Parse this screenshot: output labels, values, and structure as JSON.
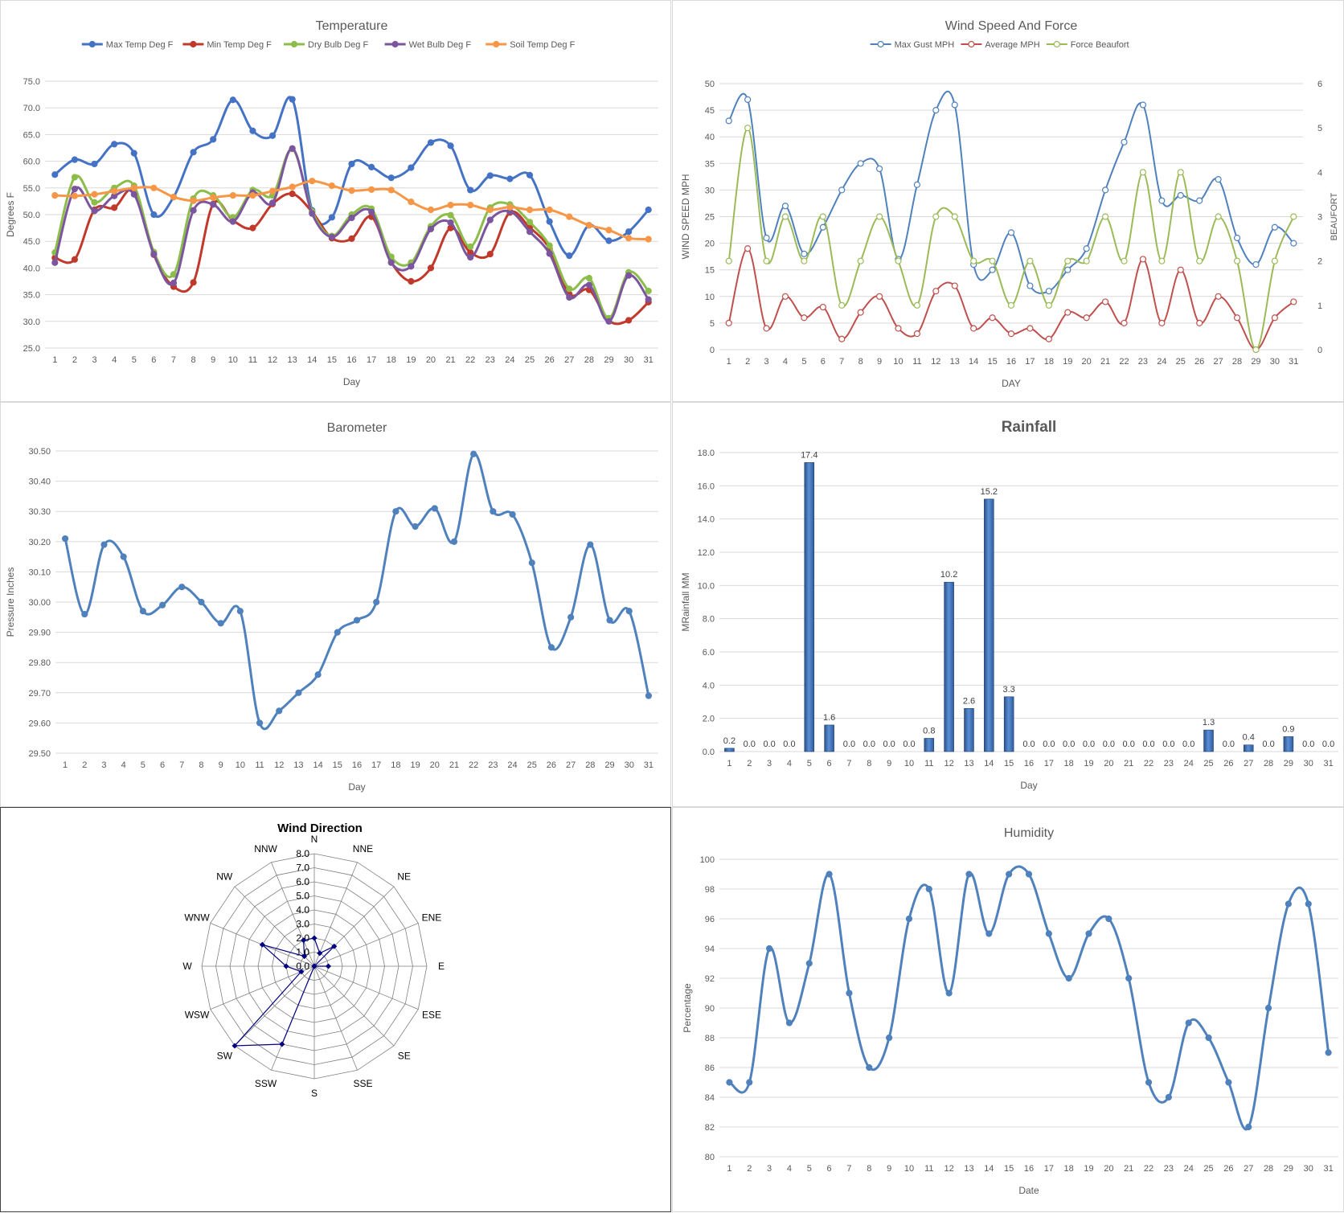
{
  "chart_data": [
    {
      "id": "temperature",
      "type": "line",
      "title": "Temperature",
      "xlabel": "Day",
      "ylabel": "Degrees F",
      "ylim": [
        25,
        75
      ],
      "yticks": [
        "25.0",
        "30.0",
        "35.0",
        "40.0",
        "45.0",
        "50.0",
        "55.0",
        "60.0",
        "65.0",
        "70.0",
        "75.0"
      ],
      "legend": "top",
      "grid": true,
      "categories": [
        1,
        2,
        3,
        4,
        5,
        6,
        7,
        8,
        9,
        10,
        11,
        12,
        13,
        14,
        15,
        16,
        17,
        18,
        19,
        20,
        21,
        22,
        23,
        24,
        25,
        26,
        27,
        28,
        29,
        30,
        31
      ],
      "series": [
        {
          "name": "Max Temp Deg F",
          "color": "#4472c4",
          "values": [
            57.5,
            60.3,
            59.5,
            63.2,
            61.5,
            50.0,
            53.3,
            61.7,
            64.1,
            71.5,
            65.7,
            64.8,
            71.6,
            50.8,
            49.5,
            59.5,
            58.9,
            56.9,
            58.8,
            63.5,
            62.9,
            54.6,
            57.3,
            56.7,
            57.4,
            48.7,
            42.3,
            48.0,
            45.1,
            46.8,
            50.9
          ]
        },
        {
          "name": "Min Temp Deg F",
          "color": "#c0392b",
          "values": [
            41.9,
            41.6,
            50.9,
            51.3,
            54.4,
            42.5,
            36.5,
            37.3,
            52.0,
            48.9,
            47.5,
            52.0,
            53.9,
            50.5,
            45.6,
            45.5,
            49.6,
            41.1,
            37.5,
            40.0,
            47.5,
            42.9,
            42.6,
            50.4,
            47.6,
            43.6,
            35.1,
            35.9,
            30.1,
            30.2,
            33.6
          ]
        },
        {
          "name": "Dry Bulb Deg F",
          "color": "#8cbd4a",
          "values": [
            42.9,
            57.0,
            52.3,
            55.0,
            55.4,
            43.0,
            38.8,
            53.0,
            53.6,
            49.5,
            54.6,
            53.6,
            62.3,
            50.6,
            46.0,
            50.0,
            51.1,
            42.1,
            41.0,
            47.8,
            49.9,
            44.0,
            51.3,
            51.9,
            48.6,
            44.2,
            36.1,
            38.1,
            30.6,
            39.2,
            35.7
          ]
        },
        {
          "name": "Wet Bulb Deg F",
          "color": "#7b569e",
          "values": [
            41.0,
            54.8,
            50.7,
            53.5,
            53.8,
            42.6,
            37.2,
            50.8,
            51.9,
            48.7,
            54.1,
            52.2,
            62.4,
            50.2,
            45.8,
            49.4,
            50.5,
            41.0,
            40.3,
            47.3,
            48.5,
            42.0,
            49.0,
            50.6,
            46.8,
            42.7,
            34.5,
            36.8,
            30.0,
            38.6,
            34.1
          ]
        },
        {
          "name": "Soil Temp Deg F",
          "color": "#f79646",
          "values": [
            53.6,
            53.5,
            53.8,
            54.4,
            55.0,
            55.0,
            53.3,
            52.6,
            53.2,
            53.6,
            53.6,
            54.4,
            55.2,
            56.3,
            55.4,
            54.5,
            54.7,
            54.6,
            52.4,
            50.9,
            51.8,
            51.8,
            50.9,
            51.4,
            50.9,
            50.9,
            49.6,
            48.0,
            47.1,
            45.6,
            45.4
          ]
        }
      ]
    },
    {
      "id": "wind",
      "type": "line",
      "title": "Wind Speed And Force",
      "xlabel": "DAY",
      "ylabel": "WIND SPEED MPH",
      "y2label": "BEAUFORT",
      "ylim": [
        0,
        50
      ],
      "y2lim": [
        0,
        6
      ],
      "yticks": [
        "0",
        "5",
        "10",
        "15",
        "20",
        "25",
        "30",
        "35",
        "40",
        "45",
        "50"
      ],
      "y2ticks": [
        "0",
        "1",
        "2",
        "3",
        "4",
        "5",
        "6"
      ],
      "legend": "top",
      "grid": true,
      "categories": [
        1,
        2,
        3,
        4,
        5,
        6,
        7,
        8,
        9,
        10,
        11,
        12,
        13,
        14,
        15,
        16,
        17,
        18,
        19,
        20,
        21,
        22,
        23,
        24,
        25,
        26,
        27,
        28,
        29,
        30,
        31
      ],
      "series": [
        {
          "name": "Max Gust MPH",
          "color": "#4f81bd",
          "axis": "left",
          "values": [
            43,
            47,
            21,
            27,
            18,
            23,
            30,
            35,
            34,
            17,
            31,
            45,
            46,
            16,
            15,
            22,
            12,
            11,
            15,
            19,
            30,
            39,
            46,
            28,
            29,
            28,
            32,
            21,
            16,
            23,
            20
          ]
        },
        {
          "name": "Average MPH",
          "color": "#c0504d",
          "axis": "left",
          "values": [
            5,
            19,
            4,
            10,
            6,
            8,
            2,
            7,
            10,
            4,
            3,
            11,
            12,
            4,
            6,
            3,
            4,
            2,
            7,
            6,
            9,
            5,
            17,
            5,
            15,
            5,
            10,
            6,
            0,
            6,
            9
          ]
        },
        {
          "name": "Force Beaufort",
          "color": "#9bbb59",
          "axis": "right",
          "values": [
            2,
            5,
            2,
            3,
            2,
            3,
            1,
            2,
            3,
            2,
            1,
            3,
            3,
            2,
            2,
            1,
            2,
            1,
            2,
            2,
            3,
            2,
            4,
            2,
            4,
            2,
            3,
            2,
            0,
            2,
            3
          ]
        }
      ]
    },
    {
      "id": "barometer",
      "type": "line",
      "title": "Barometer",
      "xlabel": "Day",
      "ylabel": "Pressure Inches",
      "ylim": [
        29.5,
        30.5
      ],
      "yticks": [
        "29.50",
        "29.60",
        "29.70",
        "29.80",
        "29.90",
        "30.00",
        "30.10",
        "30.20",
        "30.30",
        "30.40",
        "30.50"
      ],
      "grid": true,
      "categories": [
        1,
        2,
        3,
        4,
        5,
        6,
        7,
        8,
        9,
        10,
        11,
        12,
        13,
        14,
        15,
        16,
        17,
        18,
        19,
        20,
        21,
        22,
        23,
        24,
        25,
        26,
        27,
        28,
        29,
        30,
        31
      ],
      "series": [
        {
          "color": "#4f81bd",
          "values": [
            30.21,
            29.96,
            30.19,
            30.15,
            29.97,
            29.99,
            30.05,
            30.0,
            29.93,
            29.97,
            29.6,
            29.64,
            29.7,
            29.76,
            29.9,
            29.94,
            30.0,
            30.3,
            30.25,
            30.31,
            30.2,
            30.49,
            30.3,
            30.29,
            30.13,
            29.85,
            29.95,
            30.19,
            29.94,
            29.97,
            29.69
          ]
        }
      ]
    },
    {
      "id": "rainfall",
      "type": "bar",
      "title": "Rainfall",
      "xlabel": "Day",
      "ylabel": "MRainfall MM",
      "ylim": [
        0,
        18
      ],
      "yticks": [
        "0.0",
        "2.0",
        "4.0",
        "6.0",
        "8.0",
        "10.0",
        "12.0",
        "14.0",
        "16.0",
        "18.0"
      ],
      "grid": true,
      "categories": [
        1,
        2,
        3,
        4,
        5,
        6,
        7,
        8,
        9,
        10,
        11,
        12,
        13,
        14,
        15,
        16,
        17,
        18,
        19,
        20,
        21,
        22,
        23,
        24,
        25,
        26,
        27,
        28,
        29,
        30,
        31
      ],
      "values": [
        0.2,
        0.0,
        0.0,
        0.0,
        17.4,
        1.6,
        0.0,
        0.0,
        0.0,
        0.0,
        0.8,
        10.2,
        2.6,
        15.2,
        3.3,
        0.0,
        0.0,
        0.0,
        0.0,
        0.0,
        0.0,
        0.0,
        0.0,
        0.0,
        1.3,
        0.0,
        0.4,
        0.0,
        0.9,
        0.0,
        0.0
      ],
      "labels": [
        "0.2",
        "0.0",
        "0.0",
        "0.0",
        "17.4",
        "1.6",
        "0.0",
        "0.0",
        "0.0",
        "0.0",
        "0.8",
        "10.2",
        "2.6",
        "15.2",
        "3.3",
        "0.0",
        "0.0",
        "0.0",
        "0.0",
        "0.0",
        "0.0",
        "0.0",
        "0.0",
        "0.0",
        "1.3",
        "0.0",
        "0.4",
        "0.0",
        "0.9",
        "0.0",
        "0.0"
      ],
      "color": "#4f81bd"
    },
    {
      "id": "wind_direction",
      "type": "radar",
      "title": "Wind Direction",
      "rlim": [
        0,
        8
      ],
      "rticks": [
        "0.0",
        "1.0",
        "2.0",
        "3.0",
        "4.0",
        "5.0",
        "6.0",
        "7.0",
        "8.0"
      ],
      "categories": [
        "N",
        "NNE",
        "NE",
        "ENE",
        "E",
        "ESE",
        "SE",
        "SSE",
        "S",
        "SSW",
        "SW",
        "WSW",
        "W",
        "WNW",
        "NW",
        "NNW"
      ],
      "values": [
        2.0,
        1.0,
        2.0,
        0.0,
        1.0,
        0.0,
        0.0,
        0.0,
        0.0,
        6.0,
        8.0,
        1.0,
        2.0,
        4.0,
        1.0,
        2.0
      ],
      "color": "#000080"
    },
    {
      "id": "humidity",
      "type": "line",
      "title": "Humidity",
      "xlabel": "Date",
      "ylabel": "Percentage",
      "ylim": [
        80,
        100
      ],
      "yticks": [
        "80",
        "82",
        "84",
        "86",
        "88",
        "90",
        "92",
        "94",
        "96",
        "98",
        "100"
      ],
      "grid": true,
      "categories": [
        1,
        2,
        3,
        4,
        5,
        6,
        7,
        8,
        9,
        10,
        11,
        12,
        13,
        14,
        15,
        16,
        17,
        18,
        19,
        20,
        21,
        22,
        23,
        24,
        25,
        26,
        27,
        28,
        29,
        30,
        31
      ],
      "series": [
        {
          "color": "#4f81bd",
          "values": [
            85,
            85,
            94,
            89,
            93,
            99,
            91,
            86,
            88,
            96,
            98,
            91,
            99,
            95,
            99,
            99,
            95,
            92,
            95,
            96,
            92,
            85,
            84,
            89,
            88,
            85,
            82,
            90,
            97,
            97,
            87
          ]
        }
      ]
    }
  ]
}
